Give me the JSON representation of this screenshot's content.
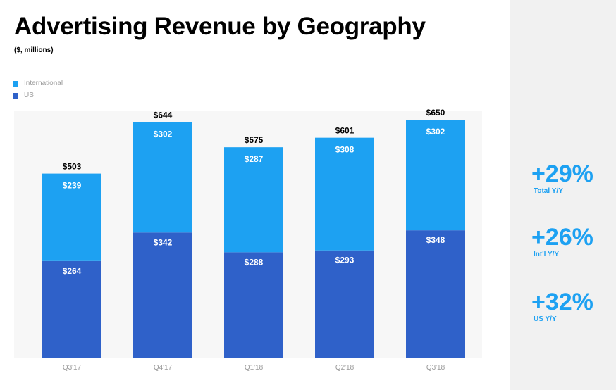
{
  "title": "Advertising Revenue by Geography",
  "subtitle": "($, millions)",
  "legend": [
    {
      "label": "International",
      "color": "#1da1f2"
    },
    {
      "label": "US",
      "color": "#2f61c9"
    }
  ],
  "chart_data": {
    "type": "bar",
    "stacked": true,
    "title": "Advertising Revenue by Geography",
    "ylabel": "($, millions)",
    "xlabel": "",
    "categories": [
      "Q3'17",
      "Q4'17",
      "Q1'18",
      "Q2'18",
      "Q3'18"
    ],
    "series": [
      {
        "name": "US",
        "color": "#2f61c9",
        "values": [
          264,
          342,
          288,
          293,
          348
        ]
      },
      {
        "name": "International",
        "color": "#1da1f2",
        "values": [
          239,
          302,
          287,
          308,
          302
        ]
      }
    ],
    "series_labels": [
      [
        "$264",
        "$342",
        "$288",
        "$293",
        "$348"
      ],
      [
        "$239",
        "$302",
        "$287",
        "$308",
        "$302"
      ]
    ],
    "totals": [
      503,
      644,
      575,
      601,
      650
    ],
    "total_labels": [
      "$503",
      "$644",
      "$575",
      "$601",
      "$650"
    ],
    "ylim": [
      0,
      700
    ],
    "grid": false,
    "legend_position": "top-left"
  },
  "stats": [
    {
      "value": "+29%",
      "label": "Total Y/Y"
    },
    {
      "value": "+26%",
      "label": "Int'l Y/Y"
    },
    {
      "value": "+32%",
      "label": "US Y/Y"
    }
  ]
}
